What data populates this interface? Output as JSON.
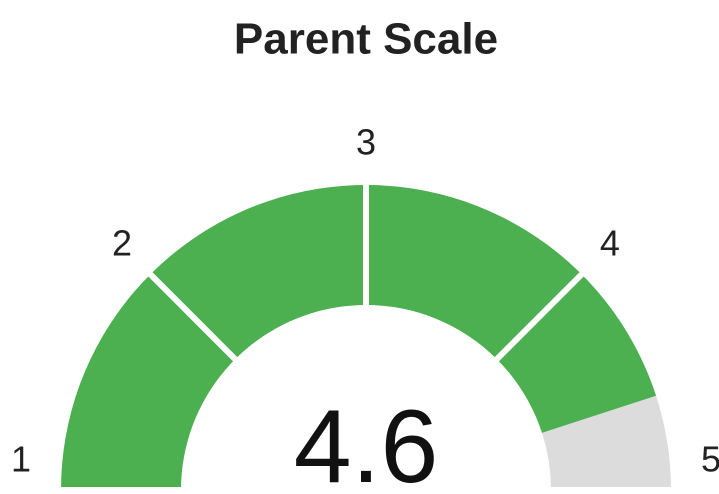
{
  "chart_data": {
    "type": "gauge",
    "title": "Parent Scale",
    "value": 4.6,
    "range": [
      1,
      5
    ],
    "ticks": [
      1,
      2,
      3,
      4,
      5
    ],
    "color": "#4caf50",
    "track_color": "#dcdcdc"
  }
}
